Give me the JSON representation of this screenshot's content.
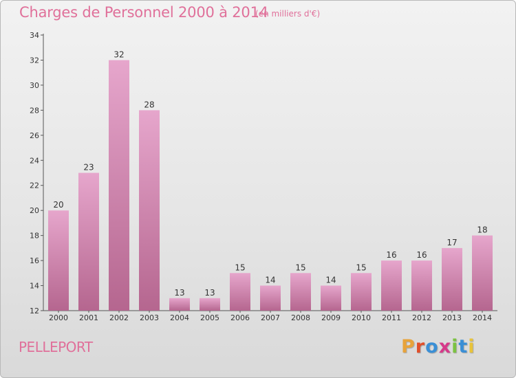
{
  "header": {
    "title": "Charges de Personnel 2000 à 2014",
    "subtitle": "(en milliers d'€)"
  },
  "footer": {
    "commune": "PELLEPORT",
    "logo": [
      "P",
      "r",
      "o",
      "x",
      "i",
      "t",
      "i"
    ]
  },
  "colors": {
    "title": "#e0709a",
    "bar_top": "#e6a6cc",
    "bar_bottom": "#b5668f",
    "logo": [
      "#e8a33a",
      "#e04f2b",
      "#3a8fd6",
      "#d63a8a",
      "#7cc242",
      "#3a8fd6",
      "#e8c33a"
    ]
  },
  "chart_data": {
    "type": "bar",
    "categories": [
      "2000",
      "2001",
      "2002",
      "2003",
      "2004",
      "2005",
      "2006",
      "2007",
      "2008",
      "2009",
      "2010",
      "2011",
      "2012",
      "2013",
      "2014"
    ],
    "values": [
      20,
      23,
      32,
      28,
      13,
      13,
      15,
      14,
      15,
      14,
      15,
      16,
      16,
      17,
      18
    ],
    "ylim": [
      12,
      34
    ],
    "yticks": [
      "12",
      "14",
      "16",
      "18",
      "20",
      "22",
      "24",
      "26",
      "28",
      "30",
      "32",
      "34"
    ],
    "grid": false,
    "legend": "none"
  }
}
